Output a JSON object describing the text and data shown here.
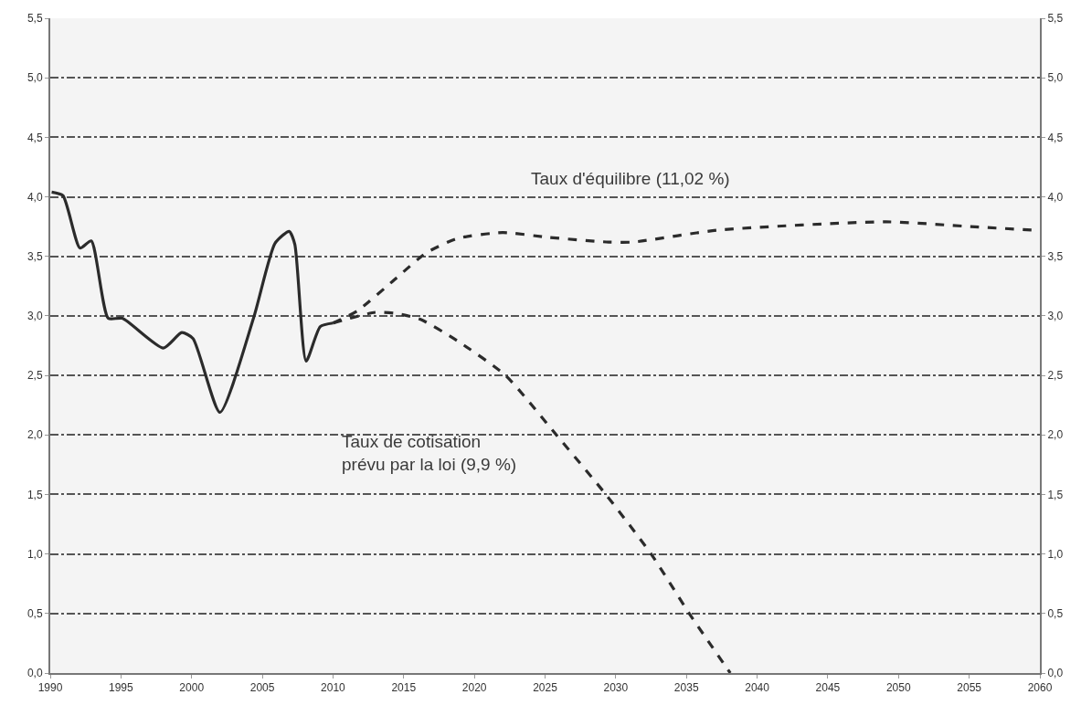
{
  "chart_data": {
    "type": "line",
    "xlim": [
      1990,
      2060
    ],
    "xticks": [
      1990,
      1995,
      2000,
      2005,
      2010,
      2015,
      2020,
      2025,
      2030,
      2035,
      2040,
      2045,
      2050,
      2055,
      2060
    ],
    "ylim": [
      0,
      5.5
    ],
    "yticks": [
      {
        "value": 0,
        "label": "0,0"
      },
      {
        "value": 0.5,
        "label": "0,5"
      },
      {
        "value": 1,
        "label": "1,0"
      },
      {
        "value": 1.5,
        "label": "1,5"
      },
      {
        "value": 2,
        "label": "2,0"
      },
      {
        "value": 2.5,
        "label": "2,5"
      },
      {
        "value": 3,
        "label": "3,0"
      },
      {
        "value": 3.5,
        "label": "3,5"
      },
      {
        "value": 4,
        "label": "4,0"
      },
      {
        "value": 4.5,
        "label": "4,5"
      },
      {
        "value": 5,
        "label": "5,0"
      },
      {
        "value": 5.5,
        "label": "5,5"
      }
    ],
    "y2lim": [
      0,
      5.5
    ],
    "y2ticks": [
      {
        "value": 0,
        "label": "0,0"
      },
      {
        "value": 0.5,
        "label": "0,5"
      },
      {
        "value": 1,
        "label": "1,0"
      },
      {
        "value": 1.5,
        "label": "1,5"
      },
      {
        "value": 2,
        "label": "2,0"
      },
      {
        "value": 2.5,
        "label": "2,5"
      },
      {
        "value": 3,
        "label": "3,0"
      },
      {
        "value": 3.5,
        "label": "3,5"
      },
      {
        "value": 4,
        "label": "4,0"
      },
      {
        "value": 4.5,
        "label": "4,5"
      },
      {
        "value": 5,
        "label": "5,0"
      },
      {
        "value": 5.5,
        "label": "5,5"
      }
    ],
    "grid": "y",
    "marker": "none",
    "series": [
      {
        "color": "#2b2b2b",
        "line_style": "solid",
        "x": [
          1990.1,
          1990.9,
          1992.1,
          1992.9,
          1994.1,
          1995.1,
          1998.0,
          1999.3,
          2000.1,
          2002.0,
          2004.4,
          2005.9,
          2006.9,
          2007.3,
          2008.1,
          2009.1,
          2010.0
        ],
        "values": [
          4.04,
          4.01,
          3.57,
          3.63,
          2.98,
          2.98,
          2.73,
          2.86,
          2.81,
          2.19,
          2.99,
          3.61,
          3.71,
          3.6,
          2.62,
          2.91,
          2.94
        ]
      },
      {
        "color": "#2b2b2b",
        "line_style": "dashed",
        "x": [
          2010.0,
          2011.7,
          2014.5,
          2016.6,
          2018.8,
          2022.0,
          2025.2,
          2029.5,
          2031.2,
          2037.2,
          2049.1,
          2055.1,
          2059.6
        ],
        "values": [
          2.94,
          3.04,
          3.32,
          3.53,
          3.65,
          3.7,
          3.66,
          3.62,
          3.62,
          3.72,
          3.79,
          3.75,
          3.72
        ]
      },
      {
        "color": "#2b2b2b",
        "line_style": "dashed",
        "x": [
          2010.0,
          2013.0,
          2014.5,
          2016.2,
          2018.8,
          2022.2,
          2025.8,
          2029.3,
          2032.5,
          2035.2,
          2038.1
        ],
        "values": [
          2.94,
          3.03,
          3.02,
          2.97,
          2.79,
          2.5,
          2.0,
          1.5,
          1.0,
          0.5,
          0.0
        ]
      }
    ],
    "annotations": [
      "Taux d'équilibre (11,02 %)",
      "Taux de cotisation\nprévu par la loi (9,9 %)"
    ]
  }
}
